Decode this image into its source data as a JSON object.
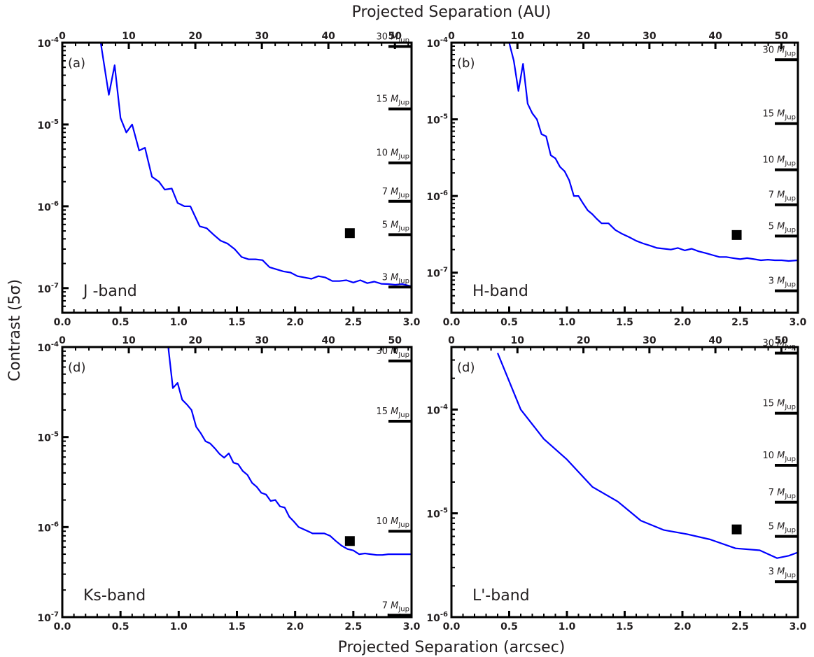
{
  "figure": {
    "top_title": "Projected Separation (AU)",
    "bottom_title": "Projected Separation (arcsec)",
    "ylabel": "Contrast (5σ)",
    "line_color": "#0000ff",
    "frame_color": "#000000",
    "text_color": "#231f20"
  },
  "chart_data": [
    {
      "type": "line",
      "panel_label": "(a)",
      "band_label": "J -band",
      "x_ticks": [
        "0.0",
        "0.5",
        "1.0",
        "1.5",
        "2.0",
        "2.5",
        "3.0"
      ],
      "x_top_ticks": [
        "0",
        "10",
        "20",
        "30",
        "40",
        "50"
      ],
      "y_ticks": [
        {
          "base": "10",
          "exp": "-7"
        },
        {
          "base": "10",
          "exp": "-6"
        },
        {
          "base": "10",
          "exp": "-5"
        },
        {
          "base": "10",
          "exp": "-4"
        }
      ],
      "xlim": [
        0,
        3
      ],
      "ylim": [
        5e-08,
        0.0001
      ],
      "yscale": "log",
      "top_axis": {
        "unit": "AU",
        "xlim": [
          0,
          52.5
        ]
      },
      "series": [
        {
          "x": [
            0.33,
            0.4,
            0.45,
            0.5,
            0.55,
            0.6,
            0.66,
            0.71,
            0.77,
            0.83,
            0.88,
            0.94,
            0.99,
            1.05,
            1.1,
            1.18,
            1.24,
            1.3,
            1.36,
            1.42,
            1.48,
            1.54,
            1.6,
            1.66,
            1.72,
            1.78,
            1.84,
            1.9,
            1.96,
            2.02,
            2.08,
            2.14,
            2.2,
            2.26,
            2.32,
            2.38,
            2.44,
            2.5,
            2.56,
            2.62,
            2.68,
            2.74,
            2.8,
            2.86,
            2.92,
            3.0
          ],
          "y": [
            0.0001,
            2.3e-05,
            5.3e-05,
            1.2e-05,
            8e-06,
            1e-05,
            4.8e-06,
            5.2e-06,
            2.3e-06,
            2e-06,
            1.6e-06,
            1.65e-06,
            1.1e-06,
            1e-06,
            1e-06,
            5.7e-07,
            5.4e-07,
            4.5e-07,
            3.8e-07,
            3.5e-07,
            3e-07,
            2.4e-07,
            2.25e-07,
            2.25e-07,
            2.2e-07,
            1.8e-07,
            1.7e-07,
            1.6e-07,
            1.55e-07,
            1.4e-07,
            1.35e-07,
            1.3e-07,
            1.4e-07,
            1.35e-07,
            1.22e-07,
            1.22e-07,
            1.25e-07,
            1.17e-07,
            1.25e-07,
            1.15e-07,
            1.2e-07,
            1.13e-07,
            1.12e-07,
            1.1e-07,
            1.12e-07,
            1.05e-07
          ]
        }
      ],
      "marker": {
        "x": 2.47,
        "y": 4.7e-07
      },
      "mass_ticks": [
        {
          "label": "30",
          "unit": "Jup",
          "y": 9e-05
        },
        {
          "label": "15",
          "unit": "Jup",
          "y": 1.55e-05
        },
        {
          "label": "10",
          "unit": "Jup",
          "y": 3.4e-06
        },
        {
          "label": "7",
          "unit": "Jup",
          "y": 1.15e-06
        },
        {
          "label": "5",
          "unit": "Jup",
          "y": 4.5e-07
        },
        {
          "label": "3",
          "unit": "Jup",
          "y": 1.03e-07
        }
      ]
    },
    {
      "type": "line",
      "panel_label": "(b)",
      "band_label": "H-band",
      "x_ticks": [
        "0.0",
        "0.5",
        "1.0",
        "1.5",
        "2.0",
        "2.5",
        "3.0"
      ],
      "x_top_ticks": [
        "0",
        "10",
        "20",
        "30",
        "40",
        "50"
      ],
      "y_ticks": [
        {
          "base": "10",
          "exp": "-7"
        },
        {
          "base": "10",
          "exp": "-6"
        },
        {
          "base": "10",
          "exp": "-5"
        },
        {
          "base": "10",
          "exp": "-4"
        }
      ],
      "xlim": [
        0,
        3
      ],
      "ylim": [
        3e-08,
        0.0001
      ],
      "yscale": "log",
      "top_axis": {
        "unit": "AU",
        "xlim": [
          0,
          52.5
        ]
      },
      "series": [
        {
          "x": [
            0.5,
            0.54,
            0.58,
            0.62,
            0.66,
            0.7,
            0.74,
            0.78,
            0.82,
            0.86,
            0.9,
            0.94,
            0.98,
            1.02,
            1.06,
            1.1,
            1.14,
            1.18,
            1.22,
            1.26,
            1.3,
            1.36,
            1.42,
            1.48,
            1.54,
            1.6,
            1.66,
            1.72,
            1.78,
            1.84,
            1.9,
            1.96,
            2.02,
            2.08,
            2.14,
            2.2,
            2.26,
            2.32,
            2.38,
            2.44,
            2.5,
            2.56,
            2.62,
            2.68,
            2.74,
            2.8,
            2.86,
            2.92,
            3.0
          ],
          "y": [
            0.0001,
            5.8e-05,
            2.35e-05,
            5.3e-05,
            1.6e-05,
            1.2e-05,
            1e-05,
            6.4e-06,
            6e-06,
            3.4e-06,
            3.1e-06,
            2.4e-06,
            2.1e-06,
            1.6e-06,
            1e-06,
            1e-06,
            8e-07,
            6.5e-07,
            5.8e-07,
            5e-07,
            4.4e-07,
            4.4e-07,
            3.6e-07,
            3.2e-07,
            2.9e-07,
            2.6e-07,
            2.4e-07,
            2.25e-07,
            2.1e-07,
            2.05e-07,
            2e-07,
            2.1e-07,
            1.95e-07,
            2.05e-07,
            1.9e-07,
            1.8e-07,
            1.7e-07,
            1.6e-07,
            1.6e-07,
            1.55e-07,
            1.5e-07,
            1.55e-07,
            1.5e-07,
            1.45e-07,
            1.48e-07,
            1.45e-07,
            1.45e-07,
            1.42e-07,
            1.45e-07
          ]
        }
      ],
      "marker": {
        "x": 2.47,
        "y": 3.1e-07
      },
      "mass_ticks": [
        {
          "label": "30",
          "unit": "Jup",
          "y": 6e-05
        },
        {
          "label": "15",
          "unit": "Jup",
          "y": 8.8e-06
        },
        {
          "label": "10",
          "unit": "Jup",
          "y": 2.2e-06
        },
        {
          "label": "7",
          "unit": "Jup",
          "y": 7.7e-07
        },
        {
          "label": "5",
          "unit": "Jup",
          "y": 3e-07
        },
        {
          "label": "3",
          "unit": "Jup",
          "y": 5.8e-08
        }
      ]
    },
    {
      "type": "line",
      "panel_label": "(d)",
      "band_label": "Ks-band",
      "x_ticks": [
        "0.0",
        "0.5",
        "1.0",
        "1.5",
        "2.0",
        "2.5",
        "3.0"
      ],
      "x_top_ticks": [
        "0",
        "10",
        "20",
        "30",
        "40",
        "50"
      ],
      "y_ticks": [
        {
          "base": "10",
          "exp": "-7"
        },
        {
          "base": "10",
          "exp": "-6"
        },
        {
          "base": "10",
          "exp": "-5"
        },
        {
          "base": "10",
          "exp": "-4"
        }
      ],
      "xlim": [
        0,
        3
      ],
      "ylim": [
        1e-07,
        0.0001
      ],
      "yscale": "log",
      "top_axis": {
        "unit": "AU",
        "xlim": [
          0,
          52.5
        ]
      },
      "series": [
        {
          "x": [
            0.82,
            0.85,
            0.88,
            0.91,
            0.95,
            0.99,
            1.03,
            1.07,
            1.11,
            1.15,
            1.19,
            1.23,
            1.27,
            1.31,
            1.35,
            1.39,
            1.43,
            1.47,
            1.51,
            1.55,
            1.59,
            1.63,
            1.67,
            1.71,
            1.75,
            1.79,
            1.83,
            1.87,
            1.91,
            1.95,
            1.99,
            2.03,
            2.07,
            2.11,
            2.15,
            2.2,
            2.25,
            2.3,
            2.35,
            2.4,
            2.45,
            2.5,
            2.55,
            2.6,
            2.65,
            2.7,
            2.75,
            2.8,
            2.85,
            2.9,
            2.95,
            3.0
          ],
          "y": [
            0.0001,
            0.0001,
            0.0001,
            0.0001,
            3.5e-05,
            4e-05,
            2.6e-05,
            2.3e-05,
            2e-05,
            1.3e-05,
            1.1e-05,
            9e-06,
            8.5e-06,
            7.5e-06,
            6.5e-06,
            5.9e-06,
            6.6e-06,
            5.2e-06,
            5e-06,
            4.2e-06,
            3.8e-06,
            3.1e-06,
            2.8e-06,
            2.4e-06,
            2.3e-06,
            1.95e-06,
            2e-06,
            1.7e-06,
            1.65e-06,
            1.3e-06,
            1.15e-06,
            1e-06,
            9.5e-07,
            9e-07,
            8.5e-07,
            8.5e-07,
            8.5e-07,
            8e-07,
            7e-07,
            6.2e-07,
            5.7e-07,
            5.5e-07,
            5e-07,
            5.1e-07,
            5e-07,
            4.9e-07,
            4.9e-07,
            5e-07,
            5e-07,
            5e-07,
            5e-07,
            5e-07
          ]
        }
      ],
      "marker": {
        "x": 2.47,
        "y": 7e-07
      },
      "mass_ticks": [
        {
          "label": "30",
          "unit": "Jup",
          "y": 7e-05
        },
        {
          "label": "15",
          "unit": "Jup",
          "y": 1.5e-05
        },
        {
          "label": "10",
          "unit": "Jup",
          "y": 9e-07
        },
        {
          "label": "7",
          "unit": "Jup",
          "y": 1.05e-07
        }
      ]
    },
    {
      "type": "line",
      "panel_label": "(d)",
      "band_label": "L'-band",
      "x_ticks": [
        "0.0",
        "0.5",
        "1.0",
        "1.5",
        "2.0",
        "2.5",
        "3.0"
      ],
      "x_top_ticks": [
        "0",
        "10",
        "20",
        "30",
        "40",
        "50"
      ],
      "y_ticks": [
        {
          "base": "10",
          "exp": "-6"
        },
        {
          "base": "10",
          "exp": "-5"
        },
        {
          "base": "10",
          "exp": "-4"
        }
      ],
      "xlim": [
        0,
        3
      ],
      "ylim": [
        1e-06,
        0.0004
      ],
      "yscale": "log",
      "top_axis": {
        "unit": "AU",
        "xlim": [
          0,
          52.5
        ]
      },
      "series": [
        {
          "x": [
            0.4,
            0.6,
            0.8,
            1.0,
            1.22,
            1.44,
            1.64,
            1.84,
            2.04,
            2.24,
            2.46,
            2.67,
            2.82,
            2.92,
            3.0
          ],
          "y": [
            0.00035,
            0.0001,
            5.2e-05,
            3.3e-05,
            1.8e-05,
            1.3e-05,
            8.5e-06,
            6.9e-06,
            6.3e-06,
            5.6e-06,
            4.6e-06,
            4.4e-06,
            3.7e-06,
            3.9e-06,
            4.2e-06
          ]
        }
      ],
      "marker": {
        "x": 2.47,
        "y": 7e-06
      },
      "mass_ticks": [
        {
          "label": "30",
          "unit": "Jup",
          "y": 0.00035
        },
        {
          "label": "15",
          "unit": "Jup",
          "y": 9.2e-05
        },
        {
          "label": "10",
          "unit": "Jup",
          "y": 2.9e-05
        },
        {
          "label": "7",
          "unit": "Jup",
          "y": 1.28e-05
        },
        {
          "label": "5",
          "unit": "Jup",
          "y": 6e-06
        },
        {
          "label": "3",
          "unit": "Jup",
          "y": 2.2e-06
        }
      ]
    }
  ]
}
